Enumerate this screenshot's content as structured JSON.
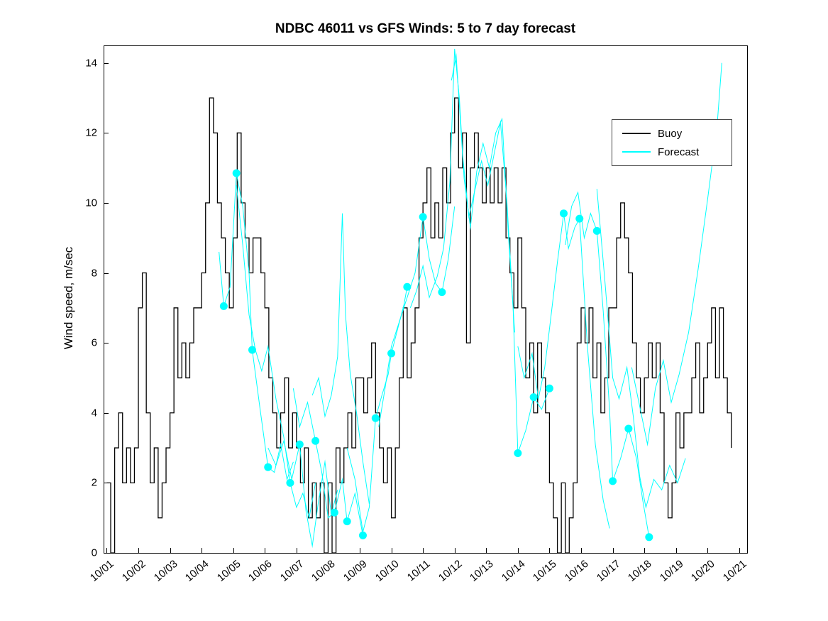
{
  "page": {
    "background": "#ffffff"
  },
  "chart_data": {
    "type": "line",
    "title": "NDBC 46011 vs GFS Winds: 5 to 7 day forecast",
    "ylabel": "Wind speed, m/sec",
    "xlabel": "",
    "x_unit": "days since 10/01",
    "xlim": [
      -0.1,
      20.25
    ],
    "ylim": [
      0,
      14.5
    ],
    "grid": false,
    "yticks": [
      0,
      2,
      4,
      6,
      8,
      10,
      12,
      14
    ],
    "ytick_labels": [
      "0",
      "2",
      "4",
      "6",
      "8",
      "10",
      "12",
      "14"
    ],
    "xticks": [
      0,
      1,
      2,
      3,
      4,
      5,
      6,
      7,
      8,
      9,
      10,
      11,
      12,
      13,
      14,
      15,
      16,
      17,
      18,
      19,
      20
    ],
    "xtick_labels": [
      "10/01",
      "10/02",
      "10/03",
      "10/04",
      "10/05",
      "10/06",
      "10/07",
      "10/08",
      "10/09",
      "10/10",
      "10/11",
      "10/12",
      "10/13",
      "10/14",
      "10/15",
      "10/16",
      "10/17",
      "10/18",
      "10/19",
      "10/20",
      "10/21"
    ],
    "legend": {
      "position": "upper-right",
      "entries": [
        {
          "label": "Buoy",
          "color": "#000000"
        },
        {
          "label": "Forecast",
          "color": "#00ffff"
        }
      ]
    },
    "series": {
      "buoy": {
        "name": "Buoy",
        "color": "#000000",
        "style": "step",
        "x_start": 0,
        "dx": 0.125,
        "values": [
          2,
          0,
          3,
          4,
          2,
          3,
          2,
          3,
          7,
          8,
          4,
          2,
          3,
          1,
          2,
          3,
          4,
          7,
          5,
          6,
          5,
          6,
          7,
          7,
          8,
          10,
          13,
          12,
          10,
          9,
          8,
          7,
          9,
          12,
          10,
          9,
          8,
          9,
          9,
          8,
          7,
          5,
          4,
          3,
          4,
          5,
          3,
          4,
          3,
          2,
          3,
          1,
          2,
          1,
          2,
          0,
          2,
          0,
          3,
          2,
          3,
          4,
          3,
          5,
          5,
          4,
          5,
          6,
          4,
          3,
          2,
          3,
          1,
          3,
          5,
          7,
          5,
          6,
          7,
          9,
          10,
          11,
          9,
          10,
          9,
          11,
          10,
          12,
          13,
          11,
          12,
          6,
          11,
          12,
          11,
          10,
          11,
          10,
          11,
          10,
          11,
          9,
          8,
          7,
          9,
          7,
          5,
          6,
          4,
          6,
          5,
          4,
          2,
          1,
          0,
          2,
          0,
          1,
          2,
          6,
          7,
          6,
          7,
          5,
          6,
          4,
          5,
          7,
          7,
          9,
          10,
          9,
          8,
          6,
          5,
          4,
          5,
          6,
          5,
          6,
          4,
          2,
          1,
          2,
          4,
          3,
          4,
          4,
          5,
          6,
          4,
          5,
          6,
          7,
          5,
          7,
          5,
          4,
          3
        ]
      },
      "forecast": {
        "name": "Forecast",
        "color": "#00ffff",
        "runs": [
          [
            [
              3.55,
              8.6
            ],
            [
              3.7,
              7.05
            ],
            [
              3.9,
              7.6
            ],
            [
              4.1,
              10.85
            ],
            [
              4.3,
              9.9
            ],
            [
              4.5,
              8.0
            ],
            [
              4.6,
              5.8
            ],
            [
              4.85,
              4.1
            ],
            [
              5.1,
              2.45
            ],
            [
              5.3,
              2.3
            ],
            [
              5.5,
              3.1
            ],
            [
              5.7,
              2.1
            ],
            [
              5.9,
              2.6
            ]
          ],
          [
            [
              4.1,
              10.5
            ],
            [
              4.3,
              8.8
            ],
            [
              4.5,
              6.8
            ],
            [
              4.7,
              5.8
            ],
            [
              4.9,
              5.2
            ],
            [
              5.1,
              5.9
            ],
            [
              5.35,
              4.4
            ],
            [
              5.6,
              3.3
            ],
            [
              5.8,
              2.0
            ],
            [
              6.0,
              1.3
            ],
            [
              6.2,
              1.7
            ],
            [
              6.4,
              1.0
            ],
            [
              6.6,
              2.0
            ]
          ],
          [
            [
              5.1,
              3.0
            ],
            [
              5.35,
              2.5
            ],
            [
              5.6,
              3.2
            ],
            [
              5.85,
              2.1
            ],
            [
              6.1,
              3.1
            ],
            [
              6.3,
              1.2
            ],
            [
              6.5,
              0.2
            ],
            [
              6.7,
              1.5
            ],
            [
              6.9,
              2.6
            ],
            [
              7.1,
              1.1
            ],
            [
              7.3,
              1.8
            ]
          ],
          [
            [
              5.9,
              4.7
            ],
            [
              6.1,
              3.6
            ],
            [
              6.35,
              4.3
            ],
            [
              6.6,
              3.2
            ],
            [
              6.8,
              2.3
            ],
            [
              7.0,
              1.0
            ],
            [
              7.2,
              1.15
            ],
            [
              7.45,
              2.1
            ],
            [
              7.6,
              0.9
            ],
            [
              7.85,
              1.7
            ],
            [
              8.1,
              0.5
            ]
          ],
          [
            [
              6.5,
              4.5
            ],
            [
              6.7,
              5.0
            ],
            [
              6.9,
              3.9
            ],
            [
              7.1,
              4.5
            ],
            [
              7.3,
              5.6
            ],
            [
              7.45,
              9.7
            ],
            [
              7.55,
              6.8
            ],
            [
              7.7,
              5.1
            ],
            [
              7.9,
              4.0
            ],
            [
              8.1,
              2.6
            ],
            [
              8.3,
              1.4
            ]
          ],
          [
            [
              7.6,
              3.0
            ],
            [
              7.85,
              2.1
            ],
            [
              8.1,
              0.6
            ],
            [
              8.3,
              1.3
            ],
            [
              8.5,
              3.85
            ],
            [
              8.7,
              4.5
            ],
            [
              8.9,
              5.1
            ],
            [
              9.0,
              5.7
            ],
            [
              9.2,
              6.4
            ],
            [
              9.4,
              7.1
            ],
            [
              9.5,
              7.6
            ]
          ],
          [
            [
              8.6,
              3.6
            ],
            [
              8.8,
              4.7
            ],
            [
              9.0,
              5.9
            ],
            [
              9.25,
              6.6
            ],
            [
              9.5,
              7.3
            ],
            [
              9.75,
              8.0
            ],
            [
              10.0,
              9.6
            ],
            [
              10.2,
              8.4
            ],
            [
              10.4,
              7.7
            ],
            [
              10.6,
              7.45
            ],
            [
              10.8,
              8.4
            ],
            [
              11.0,
              9.9
            ]
          ],
          [
            [
              9.6,
              7.0
            ],
            [
              9.8,
              7.5
            ],
            [
              10.0,
              8.2
            ],
            [
              10.2,
              7.3
            ],
            [
              10.45,
              7.9
            ],
            [
              10.65,
              8.7
            ],
            [
              10.85,
              10.6
            ],
            [
              11.0,
              14.4
            ],
            [
              11.15,
              13.0
            ],
            [
              11.3,
              10.7
            ],
            [
              11.5,
              9.3
            ],
            [
              11.7,
              10.9
            ],
            [
              11.9,
              11.7
            ],
            [
              12.1,
              11.0
            ],
            [
              12.3,
              12.0
            ],
            [
              12.5,
              12.4
            ],
            [
              12.7,
              9.1
            ],
            [
              12.9,
              6.3
            ]
          ],
          [
            [
              10.9,
              13.5
            ],
            [
              11.05,
              14.2
            ],
            [
              11.25,
              11.4
            ],
            [
              11.45,
              9.6
            ],
            [
              11.65,
              10.4
            ],
            [
              11.85,
              11.2
            ],
            [
              12.05,
              10.5
            ],
            [
              12.25,
              11.4
            ],
            [
              12.45,
              12.3
            ],
            [
              12.65,
              10.1
            ],
            [
              12.85,
              7.0
            ],
            [
              13.0,
              2.85
            ],
            [
              13.25,
              3.5
            ],
            [
              13.5,
              4.45
            ],
            [
              13.75,
              4.1
            ],
            [
              14.0,
              4.7
            ]
          ],
          [
            [
              13.0,
              5.9
            ],
            [
              13.2,
              5.0
            ],
            [
              13.45,
              5.7
            ],
            [
              13.65,
              4.4
            ],
            [
              13.85,
              5.3
            ],
            [
              14.0,
              6.4
            ],
            [
              14.25,
              8.3
            ],
            [
              14.45,
              9.7
            ],
            [
              14.6,
              8.7
            ],
            [
              14.8,
              9.3
            ],
            [
              14.95,
              9.55
            ],
            [
              15.2,
              5.9
            ],
            [
              15.45,
              3.1
            ],
            [
              15.7,
              1.5
            ],
            [
              15.9,
              0.7
            ]
          ],
          [
            [
              14.5,
              8.8
            ],
            [
              14.7,
              9.9
            ],
            [
              14.9,
              10.3
            ],
            [
              15.1,
              9.0
            ],
            [
              15.3,
              9.7
            ],
            [
              15.5,
              9.2
            ],
            [
              15.7,
              6.9
            ],
            [
              15.9,
              4.1
            ],
            [
              16.0,
              2.05
            ],
            [
              16.25,
              2.7
            ],
            [
              16.5,
              3.55
            ],
            [
              16.75,
              2.7
            ],
            [
              16.95,
              1.5
            ],
            [
              17.15,
              0.45
            ]
          ],
          [
            [
              15.5,
              10.4
            ],
            [
              15.75,
              7.8
            ],
            [
              16.0,
              5.0
            ],
            [
              16.2,
              4.4
            ],
            [
              16.45,
              5.3
            ],
            [
              16.65,
              3.9
            ],
            [
              16.85,
              2.2
            ],
            [
              17.05,
              1.3
            ],
            [
              17.3,
              2.1
            ],
            [
              17.55,
              1.8
            ],
            [
              17.8,
              2.5
            ],
            [
              18.05,
              2.0
            ],
            [
              18.3,
              2.7
            ]
          ],
          [
            [
              16.6,
              5.3
            ],
            [
              16.85,
              4.2
            ],
            [
              17.1,
              3.1
            ],
            [
              17.35,
              4.7
            ],
            [
              17.6,
              5.5
            ],
            [
              17.85,
              4.3
            ],
            [
              18.1,
              5.1
            ],
            [
              18.4,
              6.3
            ],
            [
              18.7,
              8.1
            ],
            [
              19.0,
              10.1
            ],
            [
              19.3,
              12.2
            ],
            [
              19.45,
              14.0
            ]
          ]
        ]
      },
      "forecast_markers": {
        "color": "#00ffff",
        "marker": "circle",
        "points": [
          [
            3.7,
            7.05
          ],
          [
            4.1,
            10.85
          ],
          [
            4.6,
            5.8
          ],
          [
            5.1,
            2.45
          ],
          [
            5.8,
            2.0
          ],
          [
            6.1,
            3.1
          ],
          [
            6.6,
            3.2
          ],
          [
            7.2,
            1.15
          ],
          [
            7.6,
            0.9
          ],
          [
            8.1,
            0.5
          ],
          [
            8.5,
            3.85
          ],
          [
            9.0,
            5.7
          ],
          [
            9.5,
            7.6
          ],
          [
            10.0,
            9.6
          ],
          [
            10.6,
            7.45
          ],
          [
            13.0,
            2.85
          ],
          [
            13.5,
            4.45
          ],
          [
            14.0,
            4.7
          ],
          [
            14.45,
            9.7
          ],
          [
            14.95,
            9.55
          ],
          [
            15.5,
            9.2
          ],
          [
            16.0,
            2.05
          ],
          [
            16.5,
            3.55
          ],
          [
            17.15,
            0.45
          ]
        ]
      }
    }
  }
}
